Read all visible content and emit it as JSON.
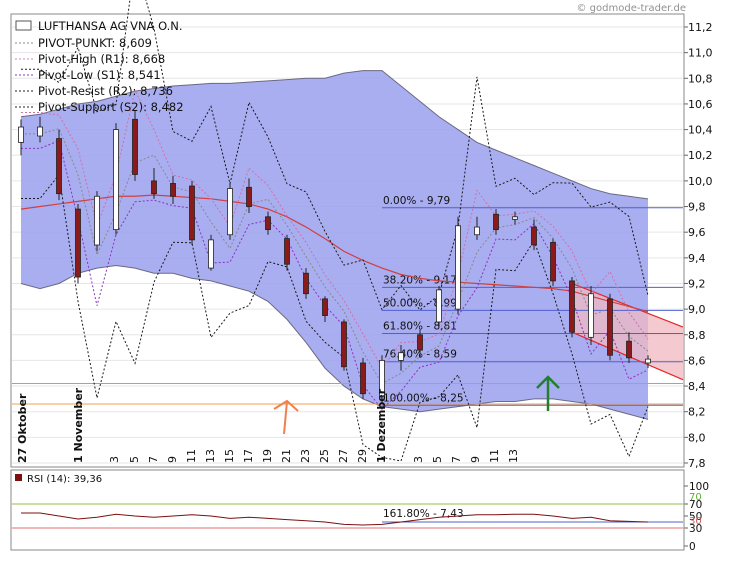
{
  "watermark": "© godmode-trader.de",
  "colors": {
    "band_fill": "#9aa0ee",
    "band_line": "#6a6a80",
    "ma_line": "#d04040",
    "candle_body": "#8b1a1a",
    "fib_line": "#5060d0",
    "channel_fill": "#f0b8c0",
    "channel_line": "#e02828",
    "green_line": "#90c040",
    "orange_line": "#f0a050",
    "rsi_line": "#7a1010",
    "arrow_orange": "#f08050",
    "arrow_green": "#208030"
  },
  "legend": {
    "security": "LUFTHANSA AG VNA O.N.",
    "pivot": "PIVOT-PUNKT: 8,609",
    "pivot_high": "Pivot-High (R1): 8,668",
    "pivot_low": "Pivot-Low (S1): 8,541",
    "pivot_resist": "Pivot-Resist (R2): 8,736",
    "pivot_support": "Pivot-Support (S2): 8,482"
  },
  "rsi_legend": "RSI (14): 39,36",
  "chart_data": {
    "type": "candlestick",
    "y_ticks": [
      "11,2",
      "11,0",
      "10,8",
      "10,6",
      "10,4",
      "10,2",
      "10,0",
      "9,8",
      "9,6",
      "9,4",
      "9,2",
      "9,0",
      "8,8",
      "8,6",
      "8,4",
      "8,2",
      "8,0",
      "7,8"
    ],
    "ylim": [
      7.8,
      11.2
    ],
    "x_ticks": [
      "27 Oktober",
      "1 November",
      "3",
      "5",
      "7",
      "9",
      "11",
      "13",
      "15",
      "17",
      "19",
      "21",
      "23",
      "25",
      "27",
      "29",
      "1 Dezember",
      "3",
      "5",
      "7",
      "9",
      "11",
      "13"
    ],
    "candles": [
      {
        "o": 10.3,
        "c": 10.42,
        "h": 10.48,
        "l": 10.2
      },
      {
        "o": 10.35,
        "c": 10.42,
        "h": 10.5,
        "l": 10.3
      },
      {
        "o": 10.33,
        "c": 9.9,
        "h": 10.4,
        "l": 9.85
      },
      {
        "o": 9.78,
        "c": 9.25,
        "h": 9.82,
        "l": 9.2
      },
      {
        "o": 9.5,
        "c": 9.88,
        "h": 9.92,
        "l": 9.45
      },
      {
        "o": 9.62,
        "c": 10.4,
        "h": 10.45,
        "l": 9.58
      },
      {
        "o": 10.48,
        "c": 10.05,
        "h": 10.55,
        "l": 10.0
      },
      {
        "o": 10.0,
        "c": 9.9,
        "h": 10.1,
        "l": 9.86
      },
      {
        "o": 9.98,
        "c": 9.88,
        "h": 10.04,
        "l": 9.82
      },
      {
        "o": 9.96,
        "c": 9.54,
        "h": 10.0,
        "l": 9.5
      },
      {
        "o": 9.32,
        "c": 9.54,
        "h": 9.58,
        "l": 9.3
      },
      {
        "o": 9.58,
        "c": 9.94,
        "h": 9.98,
        "l": 9.54
      },
      {
        "o": 9.95,
        "c": 9.8,
        "h": 10.02,
        "l": 9.75
      },
      {
        "o": 9.72,
        "c": 9.62,
        "h": 9.76,
        "l": 9.58
      },
      {
        "o": 9.55,
        "c": 9.35,
        "h": 9.58,
        "l": 9.3
      },
      {
        "o": 9.28,
        "c": 9.12,
        "h": 9.32,
        "l": 9.08
      },
      {
        "o": 9.08,
        "c": 8.95,
        "h": 9.1,
        "l": 8.9
      },
      {
        "o": 8.9,
        "c": 8.55,
        "h": 8.92,
        "l": 8.52
      },
      {
        "o": 8.58,
        "c": 8.34,
        "h": 8.62,
        "l": 8.3
      },
      {
        "o": 8.32,
        "c": 8.6,
        "h": 8.64,
        "l": 8.26
      },
      {
        "o": 8.6,
        "c": 8.66,
        "h": 8.72,
        "l": 8.52
      },
      {
        "o": 8.8,
        "c": 8.68,
        "h": 8.84,
        "l": 8.62
      },
      {
        "o": 8.9,
        "c": 9.15,
        "h": 9.18,
        "l": 8.86
      },
      {
        "o": 9.0,
        "c": 9.65,
        "h": 9.72,
        "l": 8.96
      },
      {
        "o": 9.58,
        "c": 9.64,
        "h": 9.72,
        "l": 9.54
      },
      {
        "o": 9.74,
        "c": 9.62,
        "h": 9.78,
        "l": 9.58
      },
      {
        "o": 9.7,
        "c": 9.72,
        "h": 9.76,
        "l": 9.66
      },
      {
        "o": 9.64,
        "c": 9.5,
        "h": 9.7,
        "l": 9.46
      },
      {
        "o": 9.52,
        "c": 9.22,
        "h": 9.55,
        "l": 9.18
      },
      {
        "o": 9.22,
        "c": 8.82,
        "h": 9.25,
        "l": 8.78
      },
      {
        "o": 8.78,
        "c": 9.12,
        "h": 9.18,
        "l": 8.72
      },
      {
        "o": 9.08,
        "c": 8.64,
        "h": 9.12,
        "l": 8.6
      },
      {
        "o": 8.75,
        "c": 8.62,
        "h": 8.82,
        "l": 8.58
      },
      {
        "o": 8.58,
        "c": 8.61,
        "h": 8.64,
        "l": 8.54
      }
    ],
    "band_upper": [
      10.5,
      10.52,
      10.56,
      10.6,
      10.62,
      10.66,
      10.7,
      10.72,
      10.74,
      10.75,
      10.76,
      10.76,
      10.77,
      10.78,
      10.79,
      10.8,
      10.8,
      10.84,
      10.86,
      10.86,
      10.74,
      10.62,
      10.5,
      10.4,
      10.3,
      10.24,
      10.18,
      10.12,
      10.06,
      10.0,
      9.94,
      9.9,
      9.88,
      9.86
    ],
    "band_lower": [
      9.2,
      9.16,
      9.2,
      9.28,
      9.32,
      9.34,
      9.32,
      9.28,
      9.28,
      9.24,
      9.22,
      9.18,
      9.14,
      9.06,
      8.92,
      8.74,
      8.54,
      8.4,
      8.3,
      8.24,
      8.22,
      8.2,
      8.22,
      8.24,
      8.26,
      8.28,
      8.28,
      8.3,
      8.3,
      8.28,
      8.26,
      8.22,
      8.18,
      8.14
    ],
    "moving_average": [
      9.78,
      9.8,
      9.82,
      9.84,
      9.86,
      9.88,
      9.88,
      9.89,
      9.88,
      9.87,
      9.86,
      9.84,
      9.82,
      9.78,
      9.72,
      9.64,
      9.55,
      9.45,
      9.38,
      9.32,
      9.27,
      9.24,
      9.22,
      9.21,
      9.2,
      9.19,
      9.18,
      9.17,
      9.16,
      9.14,
      9.1,
      9.06,
      9.02,
      8.98
    ],
    "fibonacci": [
      {
        "label": "0.00% - 9,79",
        "value": 9.79
      },
      {
        "label": "38.20% - 9,17",
        "value": 9.17
      },
      {
        "label": "50.00% - 8,99",
        "value": 8.99
      },
      {
        "label": "61.80% - 8,81",
        "value": 8.81
      },
      {
        "label": "76.40% - 8,59",
        "value": 8.59
      },
      {
        "label": "100.00% - 8,25",
        "value": 8.25
      }
    ],
    "horizontal_lines": {
      "green": 8.42,
      "orange": 8.26
    },
    "channel": {
      "upper": [
        9.2,
        8.86
      ],
      "lower": [
        8.82,
        8.45
      ]
    },
    "rsi": {
      "y_ticks": [
        "100",
        "70",
        "50",
        "30",
        "0"
      ],
      "fib_label": "161.80% - 7,43",
      "levels": [
        70,
        30
      ],
      "values": [
        55,
        55,
        50,
        45,
        48,
        53,
        50,
        48,
        50,
        52,
        50,
        46,
        48,
        46,
        44,
        42,
        40,
        36,
        35,
        36,
        40,
        44,
        48,
        50,
        52,
        52,
        53,
        53,
        50,
        46,
        48,
        42,
        41,
        40
      ]
    }
  }
}
